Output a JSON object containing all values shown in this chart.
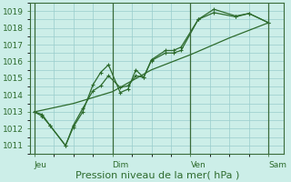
{
  "title": "",
  "xlabel": "Pression niveau de la mer( hPa )",
  "ylabel": "",
  "bg_color": "#cceee8",
  "plot_bg_color": "#cceee8",
  "grid_color": "#99cccc",
  "line_color": "#2d6b2d",
  "marker_color": "#2d6b2d",
  "ylim": [
    1010.5,
    1019.5
  ],
  "yticks": [
    1011,
    1012,
    1013,
    1014,
    1015,
    1016,
    1017,
    1018,
    1019
  ],
  "xlabel_fontsize": 8,
  "tick_fontsize": 6.5,
  "xtick_labels": [
    "Jeu",
    "Dim",
    "Ven",
    "Sam"
  ],
  "xtick_positions": [
    0.0,
    1.0,
    2.0,
    3.0
  ],
  "vline_positions": [
    0.0,
    1.0,
    2.0,
    3.0
  ],
  "series1_x": [
    0.0,
    0.1,
    0.2,
    0.4,
    0.5,
    0.62,
    0.75,
    0.85,
    0.95,
    1.1,
    1.2,
    1.3,
    1.4,
    1.5,
    1.68,
    1.78,
    1.88,
    2.1,
    2.3,
    2.58,
    2.75,
    3.0
  ],
  "series1_y": [
    1013.0,
    1012.85,
    1012.2,
    1011.0,
    1012.1,
    1013.0,
    1014.6,
    1015.35,
    1015.8,
    1014.15,
    1014.35,
    1015.5,
    1015.05,
    1016.05,
    1016.5,
    1016.5,
    1016.65,
    1018.5,
    1019.1,
    1018.7,
    1018.85,
    1018.3
  ],
  "series2_x": [
    0.0,
    0.1,
    0.2,
    0.4,
    0.5,
    0.62,
    0.75,
    0.85,
    0.95,
    1.1,
    1.2,
    1.3,
    1.4,
    1.5,
    1.68,
    1.78,
    1.88,
    2.1,
    2.3,
    2.58,
    2.75,
    3.0
  ],
  "series2_y": [
    1013.0,
    1012.75,
    1012.2,
    1011.0,
    1012.2,
    1013.2,
    1014.25,
    1014.55,
    1015.15,
    1014.45,
    1014.55,
    1015.15,
    1015.05,
    1016.1,
    1016.65,
    1016.65,
    1016.85,
    1018.5,
    1018.9,
    1018.65,
    1018.85,
    1018.3
  ],
  "series3_x": [
    0.0,
    0.5,
    1.0,
    1.5,
    2.0,
    2.5,
    3.0
  ],
  "series3_y": [
    1013.0,
    1013.5,
    1014.2,
    1015.5,
    1016.4,
    1017.4,
    1018.3
  ]
}
